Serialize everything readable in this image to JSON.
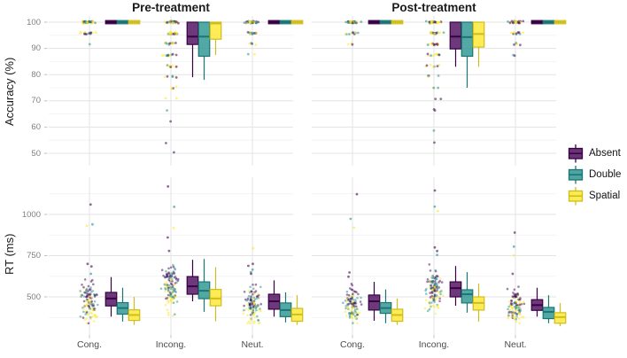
{
  "chart_data": {
    "type": "boxplot",
    "facets": [
      "Pre-treatment",
      "Post-treatment"
    ],
    "categories": [
      "Cong.",
      "Incong.",
      "Neut."
    ],
    "series": [
      "Absent",
      "Double",
      "Spatial"
    ],
    "colors": [
      "#440154",
      "#21908C",
      "#FDE725"
    ],
    "legend": {
      "position": "right",
      "entries": [
        "Absent",
        "Double",
        "Spatial"
      ]
    },
    "rows": [
      {
        "ylabel": "Accuracy (%)",
        "yticks": [
          50,
          60,
          70,
          80,
          90,
          100
        ],
        "minor_yticks": [
          55,
          65,
          75,
          85,
          95
        ],
        "ylim": [
          46,
          102.5
        ]
      },
      {
        "ylabel": "RT (ms)",
        "yticks": [
          500,
          750,
          1000
        ],
        "minor_yticks": [
          375,
          625,
          875,
          1125
        ],
        "ylim": [
          270,
          1225
        ]
      }
    ],
    "box_order": "rows x facets x categories x series, stats = [whisker_low, q1, median, q3, whisker_high]",
    "boxes": [
      [
        [
          [
            [
              100,
              100,
              100,
              100,
              100
            ],
            [
              100,
              100,
              100,
              100,
              100
            ],
            [
              100,
              100,
              100,
              100,
              100
            ]
          ],
          [
            [
              79,
              91.5,
              94.5,
              100,
              100
            ],
            [
              78,
              87,
              94.5,
              100,
              100
            ],
            [
              87.5,
              93.5,
              99.5,
              100,
              100
            ]
          ],
          [
            [
              100,
              100,
              100,
              100,
              100
            ],
            [
              100,
              100,
              100,
              100,
              100
            ],
            [
              100,
              100,
              100,
              100,
              100
            ]
          ]
        ],
        [
          [
            [
              100,
              100,
              100,
              100,
              100
            ],
            [
              100,
              100,
              100,
              100,
              100
            ],
            [
              100,
              100,
              100,
              100,
              100
            ]
          ],
          [
            [
              83,
              89.8,
              94.5,
              100,
              100
            ],
            [
              75,
              87,
              94.3,
              100,
              100
            ],
            [
              83,
              90.5,
              95.5,
              100,
              100
            ]
          ],
          [
            [
              100,
              100,
              100,
              100,
              100
            ],
            [
              100,
              100,
              100,
              100,
              100
            ],
            [
              100,
              100,
              100,
              100,
              100
            ]
          ]
        ]
      ],
      [
        [
          [
            [
              380,
              445,
              490,
              527,
              620
            ],
            [
              350,
              395,
              432,
              465,
              555
            ],
            [
              330,
              357,
              390,
              421,
              500
            ]
          ],
          [
            [
              473,
              516,
              564,
              623,
              725
            ],
            [
              409,
              489,
              537,
              591,
              730
            ],
            [
              352,
              446,
              490,
              545,
              680
            ]
          ],
          [
            [
              380,
              425,
              473,
              516,
              600
            ],
            [
              345,
              380,
              420,
              463,
              527
            ],
            [
              330,
              352,
              393,
              430,
              510
            ]
          ]
        ],
        [
          [
            [
              355,
              420,
              473,
              511,
              591
            ],
            [
              340,
              400,
              432,
              465,
              545
            ],
            [
              330,
              352,
              390,
              425,
              490
            ]
          ],
          [
            [
              446,
              500,
              553,
              591,
              687
            ],
            [
              404,
              463,
              516,
              543,
              650
            ],
            [
              350,
              420,
              463,
              500,
              580
            ]
          ],
          [
            [
              380,
              418,
              450,
              483,
              555
            ],
            [
              340,
              368,
              409,
              436,
              510
            ],
            [
              322,
              340,
              377,
              404,
              463
            ]
          ]
        ]
      ]
    ],
    "jitter_accuracy_bands": [
      [
        [
          [
            100,
            34
          ],
          [
            95.8,
            14
          ],
          [
            91.7,
            1
          ]
        ],
        [
          [
            100,
            26
          ],
          [
            95.8,
            20
          ],
          [
            91.7,
            13
          ],
          [
            87.5,
            11
          ],
          [
            83.3,
            8
          ],
          [
            79.2,
            6
          ],
          [
            75,
            4
          ],
          [
            70.8,
            2
          ],
          [
            66.7,
            1
          ],
          [
            62.5,
            1
          ],
          [
            54.2,
            1
          ],
          [
            50,
            1
          ]
        ],
        [
          [
            100,
            30
          ],
          [
            95.8,
            12
          ],
          [
            91.7,
            4
          ],
          [
            87.5,
            2
          ]
        ]
      ],
      [
        [
          [
            100,
            32
          ],
          [
            95.8,
            10
          ],
          [
            91.7,
            3
          ]
        ],
        [
          [
            100,
            26
          ],
          [
            95.8,
            18
          ],
          [
            91.7,
            12
          ],
          [
            87.5,
            9
          ],
          [
            83.3,
            7
          ],
          [
            79.2,
            4
          ],
          [
            75,
            3
          ],
          [
            70.8,
            2
          ],
          [
            66.7,
            2
          ],
          [
            58.3,
            1
          ],
          [
            54.2,
            1
          ]
        ],
        [
          [
            100,
            30
          ],
          [
            95.8,
            11
          ],
          [
            91.7,
            5
          ],
          [
            87.5,
            2
          ]
        ]
      ]
    ],
    "jitter_rt_clouds": [
      [
        {
          "mean": 460,
          "sd": 52,
          "n": 110,
          "outliers": [
            [
              1060,
              0
            ],
            [
              940,
              1
            ],
            [
              930,
              2
            ],
            [
              700,
              0
            ],
            [
              685,
              0
            ],
            [
              640,
              1
            ]
          ]
        },
        {
          "mean": 550,
          "sd": 62,
          "n": 120,
          "outliers": [
            [
              1170,
              0
            ],
            [
              1046,
              1
            ],
            [
              918,
              2
            ],
            [
              860,
              0
            ],
            [
              779,
              0
            ]
          ]
        },
        {
          "mean": 450,
          "sd": 48,
          "n": 110,
          "outliers": [
            [
              795,
              2
            ],
            [
              700,
              0
            ],
            [
              688,
              0
            ],
            [
              665,
              1
            ],
            [
              650,
              1
            ],
            [
              640,
              0
            ]
          ]
        }
      ],
      [
        {
          "mean": 450,
          "sd": 46,
          "n": 110,
          "outliers": [
            [
              1123,
              0
            ],
            [
              973,
              1
            ],
            [
              920,
              2
            ],
            [
              648,
              0
            ],
            [
              622,
              0
            ]
          ]
        },
        {
          "mean": 540,
          "sd": 58,
          "n": 120,
          "outliers": [
            [
              1145,
              0
            ],
            [
              1048,
              1
            ],
            [
              1021,
              2
            ],
            [
              800,
              0
            ],
            [
              778,
              0
            ],
            [
              755,
              1
            ]
          ]
        },
        {
          "mean": 438,
          "sd": 44,
          "n": 110,
          "outliers": [
            [
              890,
              0
            ],
            [
              805,
              1
            ],
            [
              751,
              2
            ],
            [
              640,
              0
            ]
          ]
        }
      ]
    ]
  }
}
